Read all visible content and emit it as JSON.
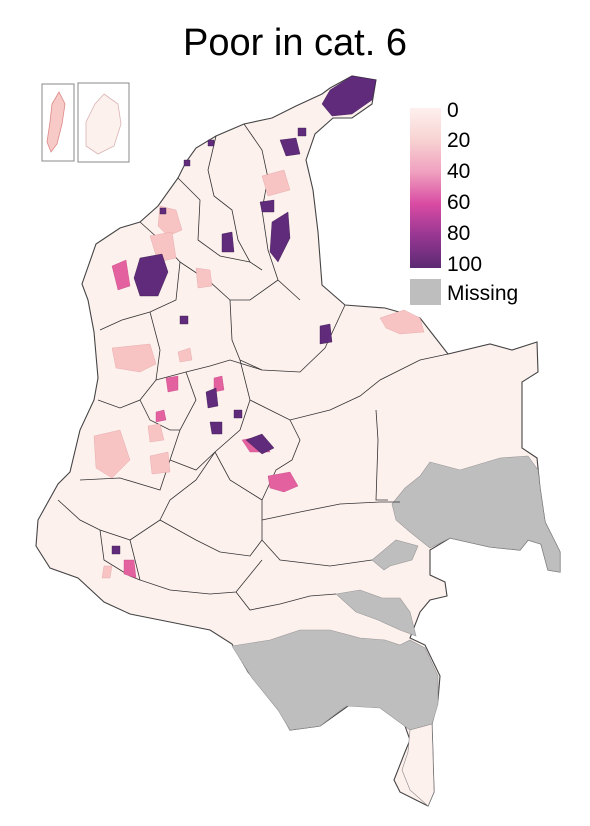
{
  "title": "Poor in cat. 6",
  "legend": {
    "ticks": [
      "0",
      "20",
      "40",
      "60",
      "80",
      "100"
    ],
    "missing_label": "Missing",
    "scale_min": 0,
    "scale_max": 100,
    "colors": {
      "low": "#fdf0ee",
      "mid": "#e64fa0",
      "high": "#5c2a73",
      "missing": "#bebebe"
    }
  },
  "map": {
    "region": "Colombia municipalities",
    "base_color": "#fdf1ee",
    "border_color": "#333333",
    "insets": [
      "San Andrés",
      "Providencia"
    ]
  }
}
